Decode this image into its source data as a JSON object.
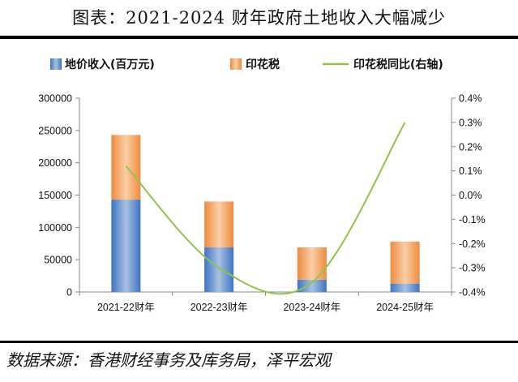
{
  "title": "图表：2021-2024 财年政府土地收入大幅减少",
  "source": "数据来源：香港财经事务及库务局，泽平宏观",
  "colors": {
    "land_top": "#3e74c4",
    "land_bottom": "#a9c1e0",
    "stamp_top": "#f08a3c",
    "stamp_bottom": "#f9cfa8",
    "ratio_line": "#92c24a",
    "axis": "#888888"
  },
  "chart_data": {
    "type": "bar",
    "categories": [
      "2021-22财年",
      "2022-23财年",
      "2023-24财年",
      "2024-25财年"
    ],
    "series": [
      {
        "name": "地价收入(百万元)",
        "kind": "stacked-bar",
        "values": [
          143000,
          69000,
          19000,
          13000
        ]
      },
      {
        "name": "印花税",
        "kind": "stacked-bar",
        "values": [
          100000,
          71000,
          50000,
          65000
        ]
      },
      {
        "name": "印花税同比(右轴)",
        "kind": "line",
        "axis": "right",
        "values": [
          0.12,
          -0.3,
          -0.36,
          0.3
        ]
      }
    ],
    "y_left": {
      "min": 0,
      "max": 300000,
      "ticks": [
        0,
        50000,
        100000,
        150000,
        200000,
        250000,
        300000
      ],
      "tick_labels": [
        "0",
        "50000",
        "100000",
        "150000",
        "200000",
        "250000",
        "300000"
      ]
    },
    "y_right": {
      "min": -0.4,
      "max": 0.4,
      "ticks": [
        -0.4,
        -0.3,
        -0.2,
        -0.1,
        0.0,
        0.1,
        0.2,
        0.3,
        0.4
      ],
      "tick_labels": [
        "-0.4%",
        "-0.3%",
        "-0.2%",
        "-0.1%",
        "0.0%",
        "0.1%",
        "0.2%",
        "0.3%",
        "0.4%"
      ]
    },
    "legend_position": "top",
    "grid": false
  }
}
